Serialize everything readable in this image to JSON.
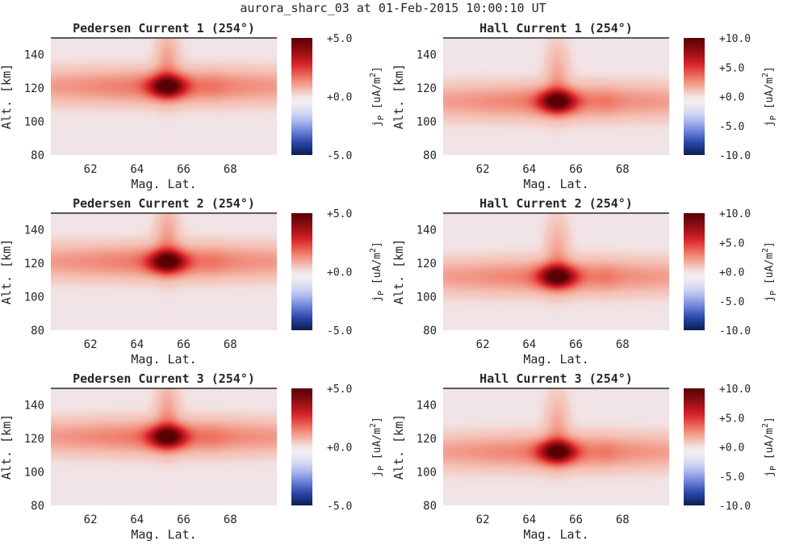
{
  "figure": {
    "title": "aurora_sharc_03 at 01-Feb-2015 10:00:10 UT"
  },
  "colormap": {
    "name": "diverging blue-white-red",
    "stops": [
      "#0b1f4f",
      "#2a48b0",
      "#7b8fe0",
      "#c9cff2",
      "#f4eff2",
      "#f4c0b4",
      "#ef7360",
      "#d8202a",
      "#8e0e12",
      "#5a0005"
    ],
    "background": "#f1e4e7"
  },
  "chart_data": [
    {
      "type": "heatmap",
      "title": "Pedersen Current 1 (254°)",
      "xlabel": "Mag. Lat.",
      "ylabel": "Alt. [km]",
      "xlim": [
        60.3,
        70.0
      ],
      "ylim": [
        80,
        150
      ],
      "xticks": [
        "62",
        "64",
        "66",
        "68"
      ],
      "yticks": [
        "80",
        "100",
        "120",
        "140"
      ],
      "colorbar": {
        "label": "j_P [uA/m^2]",
        "clim": [
          -5,
          5
        ],
        "ticks": [
          "+5.0",
          "+0.0",
          "-5.0"
        ]
      },
      "features": {
        "peak_lat": 65.3,
        "peak_alt": 121,
        "peak_value": 5.0,
        "band_alt": 121,
        "band_value": 1.6,
        "secondary_lat": 67.3,
        "secondary_value": 1.0
      }
    },
    {
      "type": "heatmap",
      "title": "Hall Current 1 (254°)",
      "xlabel": "Mag. Lat.",
      "ylabel": "Alt. [km]",
      "xlim": [
        60.3,
        70.0
      ],
      "ylim": [
        80,
        150
      ],
      "xticks": [
        "62",
        "64",
        "66",
        "68"
      ],
      "yticks": [
        "80",
        "100",
        "120",
        "140"
      ],
      "colorbar": {
        "label": "j_P [uA/m^2]",
        "clim": [
          -10,
          10
        ],
        "ticks": [
          "+10.0",
          "+5.0",
          "+0.0",
          "-5.0",
          "-10.0"
        ]
      },
      "features": {
        "peak_lat": 65.2,
        "peak_alt": 112,
        "peak_value": 10.0,
        "band_alt": 112,
        "band_value": 3.0,
        "secondary_lat": 67.3,
        "secondary_value": 2.0
      }
    },
    {
      "type": "heatmap",
      "title": "Pedersen Current 2 (254°)",
      "xlabel": "Mag. Lat.",
      "ylabel": "Alt. [km]",
      "xlim": [
        60.3,
        70.0
      ],
      "ylim": [
        80,
        150
      ],
      "xticks": [
        "62",
        "64",
        "66",
        "68"
      ],
      "yticks": [
        "80",
        "100",
        "120",
        "140"
      ],
      "colorbar": {
        "label": "j_P [uA/m^2]",
        "clim": [
          -5,
          5
        ],
        "ticks": [
          "+5.0",
          "+0.0",
          "-5.0"
        ]
      },
      "features": {
        "peak_lat": 65.3,
        "peak_alt": 121,
        "peak_value": 5.0,
        "band_alt": 121,
        "band_value": 1.6,
        "secondary_lat": 67.3,
        "secondary_value": 1.0
      }
    },
    {
      "type": "heatmap",
      "title": "Hall Current 2 (254°)",
      "xlabel": "Mag. Lat.",
      "ylabel": "Alt. [km]",
      "xlim": [
        60.3,
        70.0
      ],
      "ylim": [
        80,
        150
      ],
      "xticks": [
        "62",
        "64",
        "66",
        "68"
      ],
      "yticks": [
        "80",
        "100",
        "120",
        "140"
      ],
      "colorbar": {
        "label": "j_P [uA/m^2]",
        "clim": [
          -10,
          10
        ],
        "ticks": [
          "+10.0",
          "+5.0",
          "+0.0",
          "-5.0",
          "-10.0"
        ]
      },
      "features": {
        "peak_lat": 65.2,
        "peak_alt": 112,
        "peak_value": 10.0,
        "band_alt": 112,
        "band_value": 3.0,
        "secondary_lat": 67.3,
        "secondary_value": 2.0
      }
    },
    {
      "type": "heatmap",
      "title": "Pedersen Current 3 (254°)",
      "xlabel": "Mag. Lat.",
      "ylabel": "Alt. [km]",
      "xlim": [
        60.3,
        70.0
      ],
      "ylim": [
        80,
        150
      ],
      "xticks": [
        "62",
        "64",
        "66",
        "68"
      ],
      "yticks": [
        "80",
        "100",
        "120",
        "140"
      ],
      "colorbar": {
        "label": "j_P [uA/m^2]",
        "clim": [
          -5,
          5
        ],
        "ticks": [
          "+5.0",
          "+0.0",
          "-5.0"
        ]
      },
      "features": {
        "peak_lat": 65.3,
        "peak_alt": 121,
        "peak_value": 5.0,
        "band_alt": 121,
        "band_value": 1.6,
        "secondary_lat": 67.3,
        "secondary_value": 1.0
      }
    },
    {
      "type": "heatmap",
      "title": "Hall Current 3 (254°)",
      "xlabel": "Mag. Lat.",
      "ylabel": "Alt. [km]",
      "xlim": [
        60.3,
        70.0
      ],
      "ylim": [
        80,
        150
      ],
      "xticks": [
        "62",
        "64",
        "66",
        "68"
      ],
      "yticks": [
        "80",
        "100",
        "120",
        "140"
      ],
      "colorbar": {
        "label": "j_P [uA/m^2]",
        "clim": [
          -10,
          10
        ],
        "ticks": [
          "+10.0",
          "+5.0",
          "+0.0",
          "-5.0",
          "-10.0"
        ]
      },
      "features": {
        "peak_lat": 65.2,
        "peak_alt": 112,
        "peak_value": 10.0,
        "band_alt": 112,
        "band_value": 3.0,
        "secondary_lat": 67.3,
        "secondary_value": 2.0
      }
    }
  ]
}
